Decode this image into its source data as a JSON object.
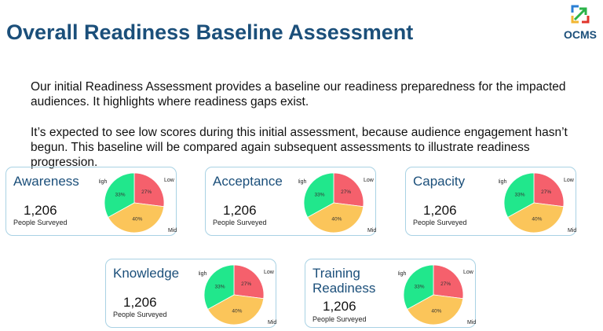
{
  "title": "Overall Readiness Baseline Assessment",
  "logo": {
    "name": "OCMS"
  },
  "paragraphs": [
    "Our initial Readiness Assessment provides a baseline our readiness preparedness for the impacted audiences. It highlights where readiness gaps exist.",
    "It’s expected to see low scores during this initial assessment, because audience engagement hasn’t begun. This baseline will be compared again subsequent assessments to illustrate readiness progression."
  ],
  "slices": [
    {
      "name": "Low",
      "value": 27,
      "color": "#f5606c"
    },
    {
      "name": "Mid",
      "value": 40,
      "color": "#fbc55a"
    },
    {
      "name": "High",
      "value": 33,
      "color": "#21e78c"
    }
  ],
  "cards": [
    {
      "title": "Awareness",
      "count": "1,206",
      "label": "People Surveyed"
    },
    {
      "title": "Acceptance",
      "count": "1,206",
      "label": "People Surveyed"
    },
    {
      "title": "Capacity",
      "count": "1,206",
      "label": "People Surveyed"
    },
    {
      "title": "Knowledge",
      "count": "1,206",
      "label": "People Surveyed"
    },
    {
      "title": "Training Readiness",
      "count": "1,206",
      "label": "People Surveyed"
    }
  ]
}
